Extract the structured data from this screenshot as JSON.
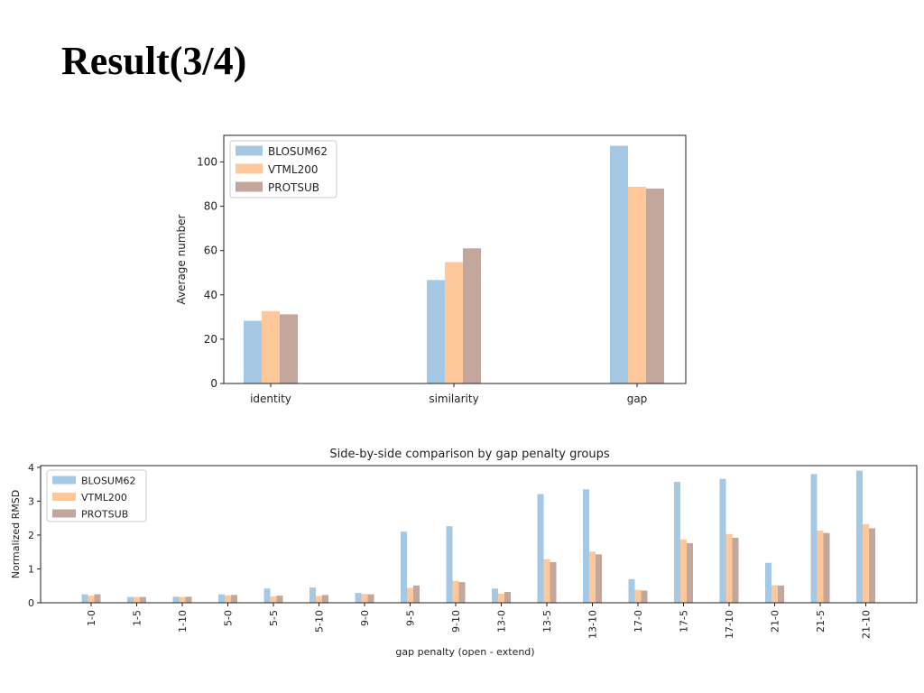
{
  "slide": {
    "title": "Result(3/4)"
  },
  "chart_data": [
    {
      "type": "bar",
      "title": "",
      "xlabel": "",
      "ylabel": "Average number",
      "ylim": [
        0,
        112
      ],
      "yticks": [
        0,
        20,
        40,
        60,
        80,
        100
      ],
      "categories": [
        "identity",
        "similarity",
        "gap"
      ],
      "series": [
        {
          "name": "BLOSUM62",
          "color": "#a5c8e4",
          "values": [
            28.3,
            46.7,
            107.3
          ]
        },
        {
          "name": "VTML200",
          "color": "#ffc89a",
          "values": [
            32.7,
            54.8,
            88.8
          ]
        },
        {
          "name": "PROTSUB",
          "color": "#c3a69c",
          "values": [
            31.2,
            61.0,
            88.0
          ]
        }
      ],
      "legend": "top-left",
      "grid": false
    },
    {
      "type": "bar",
      "title": "Side-by-side comparison by gap penalty groups",
      "xlabel": "gap penalty (open - extend)",
      "ylabel": "Normalized RMSD",
      "ylim": [
        0,
        4.05
      ],
      "yticks": [
        0,
        1,
        2,
        3,
        4
      ],
      "categories": [
        "1-0",
        "1-5",
        "1-10",
        "5-0",
        "5-5",
        "5-10",
        "9-0",
        "9-5",
        "9-10",
        "13-0",
        "13-5",
        "13-10",
        "17-0",
        "17-5",
        "17-10",
        "21-0",
        "21-5",
        "21-10"
      ],
      "series": [
        {
          "name": "BLOSUM62",
          "color": "#a5c8e4",
          "values": [
            0.25,
            0.17,
            0.18,
            0.25,
            0.42,
            0.45,
            0.29,
            2.1,
            2.26,
            0.42,
            3.21,
            3.35,
            0.7,
            3.57,
            3.66,
            1.18,
            3.8,
            3.9
          ]
        },
        {
          "name": "VTML200",
          "color": "#ffc89a",
          "values": [
            0.21,
            0.17,
            0.17,
            0.22,
            0.19,
            0.2,
            0.26,
            0.44,
            0.65,
            0.27,
            1.29,
            1.51,
            0.38,
            1.87,
            2.03,
            0.52,
            2.13,
            2.32
          ]
        },
        {
          "name": "PROTSUB",
          "color": "#c3a69c",
          "values": [
            0.25,
            0.17,
            0.18,
            0.23,
            0.21,
            0.23,
            0.25,
            0.51,
            0.61,
            0.32,
            1.2,
            1.43,
            0.36,
            1.76,
            1.92,
            0.51,
            2.06,
            2.2
          ]
        }
      ],
      "legend": "top-left",
      "grid": false
    }
  ]
}
